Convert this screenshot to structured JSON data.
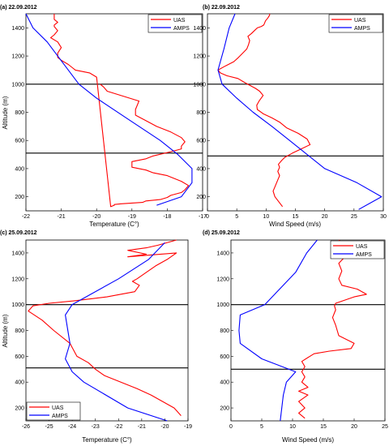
{
  "chart_data": [
    {
      "type": "line",
      "panel_label": "(a) 22.09.2012",
      "xlabel": "Temperature (C°)",
      "ylabel": "Altitude (m)",
      "xlim": [
        -22,
        -17
      ],
      "ylim": [
        100,
        1500
      ],
      "xticks": [
        "-22",
        "-21",
        "-20",
        "-19",
        "-18",
        "-17"
      ],
      "yticks": [
        "200",
        "400",
        "600",
        "800",
        "1000",
        "1200",
        "1400"
      ],
      "legend_position": "top-right",
      "hlines": [
        1000,
        510
      ],
      "series": [
        {
          "name": "UAS",
          "color": "#ff0000",
          "x": [
            -19.9,
            -19.8,
            -19.7,
            -18.8,
            -18.9,
            -18.9,
            -18.6,
            -18.3,
            -17.9,
            -17.6,
            -17.5,
            -17.6,
            -17.6,
            -17.9,
            -18.4,
            -18.6,
            -19.0,
            -19.0,
            -19.0,
            -18.6,
            -18.4,
            -18.0,
            -17.8,
            -17.6,
            -17.4,
            -17.5,
            -17.6,
            -17.9,
            -18.0,
            -18.2,
            -18.6,
            -18.7,
            -19.3,
            -19.5,
            -19.5,
            -19.6,
            -20.0,
            -20.2,
            -20.4,
            -20.6,
            -20.7,
            -20.8,
            -21.0,
            -21.1,
            -21.1,
            -21.0,
            -21.1,
            -21.3,
            -21.2,
            -21.1,
            -21.2,
            -21.2,
            -21.1,
            -21.2,
            -21.2
          ],
          "y": [
            1000,
            980,
            950,
            880,
            820,
            780,
            740,
            700,
            660,
            620,
            590,
            560,
            540,
            520,
            490,
            470,
            450,
            430,
            410,
            390,
            370,
            350,
            330,
            310,
            280,
            250,
            230,
            210,
            195,
            180,
            170,
            160,
            150,
            145,
            140,
            130,
            1050,
            1080,
            1090,
            1100,
            1120,
            1140,
            1170,
            1190,
            1220,
            1260,
            1300,
            1330,
            1350,
            1380,
            1410,
            1420,
            1440,
            1460,
            1500
          ]
        },
        {
          "name": "AMPS",
          "color": "#0000ff",
          "x": [
            -18.3,
            -17.6,
            -17.3,
            -17.3,
            -17.7,
            -18.2,
            -19.1,
            -20.0,
            -20.5,
            -20.8,
            -21.1,
            -21.4,
            -21.8,
            -22.0
          ],
          "y": [
            140,
            200,
            300,
            400,
            500,
            600,
            750,
            900,
            1000,
            1100,
            1200,
            1300,
            1400,
            1500
          ]
        }
      ]
    },
    {
      "type": "line",
      "panel_label": "(b) 22.09.2012",
      "xlabel": "Wind Speed (m/s)",
      "ylabel": "",
      "xlim": [
        0,
        30
      ],
      "ylim": [
        100,
        1500
      ],
      "xticks": [
        "0",
        "5",
        "10",
        "15",
        "20",
        "25",
        "30"
      ],
      "yticks": [
        "200",
        "400",
        "600",
        "800",
        "1000",
        "1200",
        "1400"
      ],
      "legend_position": "top-right",
      "hlines": [
        1000,
        490
      ],
      "series": [
        {
          "name": "UAS",
          "color": "#ff0000",
          "x": [
            12.8,
            11.5,
            11.2,
            11.6,
            12.0,
            12.3,
            12.0,
            12.3,
            12.1,
            12.7,
            13.2,
            14.5,
            16.0,
            17.5,
            17.0,
            15.5,
            13.5,
            12.3,
            11.0,
            9.5,
            8.5,
            8.4,
            8.8,
            9.5,
            8.9,
            8.2,
            7.3,
            6.4,
            5.2,
            3.3,
            2.2,
            1.8,
            3.1,
            4.5,
            5.3,
            6.0,
            6.7,
            7.0,
            7.2,
            6.9,
            7.5,
            8.0,
            8.5,
            9.2,
            9.6,
            9.7,
            9.9,
            10.3,
            10.6,
            10.6
          ],
          "y": [
            130,
            200,
            240,
            280,
            320,
            350,
            380,
            410,
            430,
            460,
            480,
            510,
            540,
            570,
            610,
            650,
            690,
            730,
            760,
            790,
            820,
            850,
            880,
            920,
            950,
            970,
            990,
            1010,
            1040,
            1060,
            1080,
            1100,
            1130,
            1160,
            1190,
            1220,
            1250,
            1280,
            1310,
            1340,
            1360,
            1380,
            1400,
            1410,
            1420,
            1430,
            1450,
            1470,
            1490,
            1500
          ]
        },
        {
          "name": "AMPS",
          "color": "#0000ff",
          "x": [
            25.8,
            29.7,
            25.5,
            20.0,
            17.0,
            14.0,
            11.0,
            7.8,
            5.0,
            2.5,
            1.8,
            2.8,
            3.7,
            4.7
          ],
          "y": [
            110,
            200,
            300,
            400,
            500,
            600,
            700,
            800,
            900,
            1000,
            1100,
            1250,
            1400,
            1500
          ]
        }
      ]
    },
    {
      "type": "line",
      "panel_label": "(c) 25.09.2012",
      "xlabel": "Temperature (C°)",
      "ylabel": "Altitude (m)",
      "xlim": [
        -26,
        -19
      ],
      "ylim": [
        100,
        1500
      ],
      "xticks": [
        "-26",
        "-25",
        "-24",
        "-23",
        "-22",
        "-21",
        "-20",
        "-19"
      ],
      "yticks": [
        "200",
        "400",
        "600",
        "800",
        "1000",
        "1200",
        "1400"
      ],
      "legend_position": "bottom-left",
      "hlines": [
        1000,
        510
      ],
      "series": [
        {
          "name": "UAS",
          "color": "#ff0000",
          "x": [
            -19.3,
            -19.6,
            -20.1,
            -20.6,
            -21.2,
            -21.9,
            -22.6,
            -23.0,
            -23.3,
            -23.8,
            -24.1,
            -24.8,
            -25.3,
            -25.9,
            -25.7,
            -25.0,
            -23.9,
            -22.5,
            -21.3,
            -21.1,
            -21.4,
            -21.2,
            -20.8,
            -20.4,
            -19.9,
            -19.5,
            -21.6,
            -20.8,
            -21.6,
            -20.8,
            -20.3,
            -19.5
          ],
          "y": [
            140,
            200,
            250,
            300,
            350,
            400,
            450,
            500,
            550,
            600,
            700,
            800,
            880,
            950,
            990,
            1010,
            1030,
            1060,
            1100,
            1150,
            1180,
            1200,
            1250,
            1300,
            1350,
            1400,
            1370,
            1390,
            1420,
            1440,
            1460,
            1500
          ]
        },
        {
          "name": "AMPS",
          "color": "#0000ff",
          "x": [
            -19.9,
            -21.6,
            -23.5,
            -24.0,
            -24.3,
            -24.1,
            -24.3,
            -24.0,
            -23.2,
            -22.0,
            -20.7,
            -20.0
          ],
          "y": [
            100,
            200,
            400,
            480,
            580,
            700,
            920,
            1000,
            1080,
            1200,
            1350,
            1480
          ]
        }
      ]
    },
    {
      "type": "line",
      "panel_label": "(d) 25.09.2012",
      "xlabel": "Wind Speed (m/s)",
      "ylabel": "",
      "xlim": [
        0,
        25
      ],
      "ylim": [
        100,
        1500
      ],
      "xticks": [
        "0",
        "5",
        "10",
        "15",
        "20",
        "25"
      ],
      "yticks": [
        "200",
        "400",
        "600",
        "800",
        "1000",
        "1200",
        "1400"
      ],
      "legend_position": "top-right",
      "hlines": [
        1000,
        500
      ],
      "series": [
        {
          "name": "UAS",
          "color": "#ff0000",
          "x": [
            12.0,
            11.0,
            12.0,
            11.0,
            12.5,
            11.0,
            12.5,
            11.5,
            12.0,
            11.5,
            12.0,
            11.5,
            12.5,
            13.5,
            16.0,
            19.5,
            20.0,
            17.5,
            17.0,
            16.5,
            17.0,
            16.8,
            17.0,
            20.0,
            22.0,
            20.5,
            18.0,
            17.5,
            18.0,
            17.5,
            18.5,
            17.8,
            18.5,
            17.5
          ],
          "y": [
            120,
            160,
            200,
            250,
            300,
            330,
            360,
            400,
            440,
            480,
            520,
            560,
            590,
            620,
            640,
            660,
            700,
            760,
            840,
            900,
            960,
            990,
            1010,
            1060,
            1080,
            1120,
            1150,
            1200,
            1260,
            1320,
            1370,
            1420,
            1460,
            1500
          ]
        },
        {
          "name": "AMPS",
          "color": "#0000ff",
          "x": [
            8.0,
            8.5,
            9.0,
            10.5,
            5.0,
            1.5,
            1.3,
            1.5,
            5.5,
            10.5,
            12.3,
            14.0
          ],
          "y": [
            100,
            300,
            400,
            480,
            580,
            700,
            800,
            920,
            1000,
            1250,
            1400,
            1500
          ]
        }
      ]
    }
  ]
}
